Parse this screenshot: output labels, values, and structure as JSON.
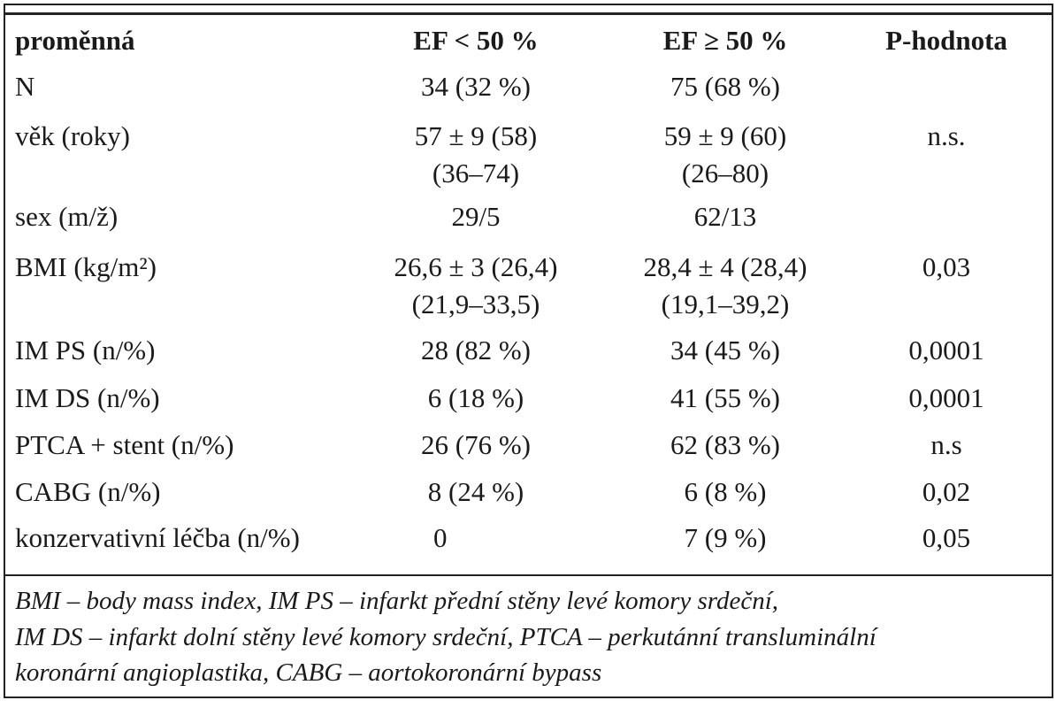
{
  "table": {
    "headers": [
      "proměnná",
      "EF < 50 %",
      "EF ≥ 50 %",
      "P-hodnota"
    ],
    "rows": [
      {
        "label": "N",
        "ef_low": [
          "34 (32 %)"
        ],
        "ef_high": [
          "75 (68 %)"
        ],
        "p": ""
      },
      {
        "label": "věk (roky)",
        "ef_low": [
          "57 ± 9 (58)",
          "(36–74)"
        ],
        "ef_high": [
          "59 ± 9 (60)",
          "(26–80)"
        ],
        "p": "n.s."
      },
      {
        "label": "sex (m/ž)",
        "ef_low": [
          "29/5"
        ],
        "ef_high": [
          "62/13"
        ],
        "p": ""
      },
      {
        "label": "BMI (kg/m²)",
        "ef_low": [
          "26,6 ± 3 (26,4)",
          "(21,9–33,5)"
        ],
        "ef_high": [
          "28,4 ± 4 (28,4)",
          "(19,1–39,2)"
        ],
        "p": "0,03"
      },
      {
        "label": "IM PS (n/%)",
        "ef_low": [
          "28 (82 %)"
        ],
        "ef_high": [
          "34 (45 %)"
        ],
        "p": "0,0001"
      },
      {
        "label": "IM DS (n/%)",
        "ef_low": [
          "6 (18 %)"
        ],
        "ef_high": [
          "41 (55 %)"
        ],
        "p": "0,0001"
      },
      {
        "label": "PTCA + stent (n/%)",
        "ef_low": [
          "26 (76 %)"
        ],
        "ef_high": [
          "62 (83 %)"
        ],
        "p": "n.s"
      },
      {
        "label": "CABG (n/%)",
        "ef_low": [
          "8 (24 %)"
        ],
        "ef_high": [
          "6 (8 %)"
        ],
        "p": "0,02"
      },
      {
        "label": "konzervativní léčba (n/%)",
        "ef_low": [
          "0"
        ],
        "ef_high": [
          "7 (9 %)"
        ],
        "p": "0,05"
      }
    ]
  },
  "footnote": {
    "lines": [
      "BMI – body mass index, IM PS – infarkt přední stěny levé komory srdeční,",
      "IM DS – infarkt dolní stěny levé komory srdeční, PTCA – perkutánní transluminální",
      "koronární angioplastika, CABG – aortokoronární bypass"
    ]
  }
}
